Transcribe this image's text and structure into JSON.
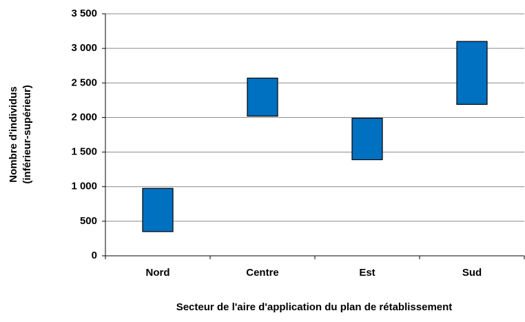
{
  "chart_data": {
    "type": "floating-bar",
    "xlabel": "Secteur de l'aire d'application du plan de rétablissement",
    "ylabel": [
      "Nombre d'individus",
      "(inférieur-supérieur)"
    ],
    "categories": [
      "Nord",
      "Centre",
      "Est",
      "Sud"
    ],
    "low": [
      350,
      2020,
      1390,
      2190
    ],
    "high": [
      975,
      2570,
      1990,
      3100
    ],
    "color": "#0070c0",
    "ylim": [
      0,
      3500
    ],
    "yticks": [
      0,
      500,
      {
        "value": 1000,
        "label": "1 000"
      },
      {
        "value": 1500,
        "label": "1 500"
      },
      {
        "value": 2000,
        "label": "2 000"
      },
      {
        "value": 2500,
        "label": "2 500"
      },
      {
        "value": 3000,
        "label": "3 000"
      },
      {
        "value": 3500,
        "label": "3 500"
      }
    ],
    "grid": true
  }
}
